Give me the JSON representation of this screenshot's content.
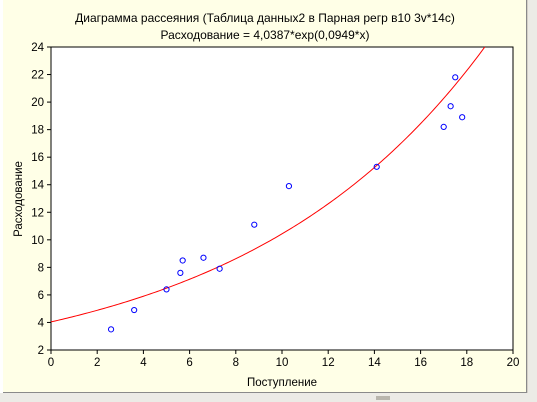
{
  "chart_data": {
    "type": "scatter",
    "title": "Диаграмма рассеяния (Таблица данных2 в Парная регр в10 3v*14c)",
    "subtitle": "Расходование = 4,0387*exp(0,0949*x)",
    "xlabel": "Поступление",
    "ylabel": "Расходование",
    "xlim": [
      0,
      20
    ],
    "ylim": [
      2,
      24
    ],
    "x_ticks": [
      "0",
      "2",
      "4",
      "6",
      "8",
      "10",
      "12",
      "14",
      "16",
      "18",
      "20"
    ],
    "y_ticks": [
      "2",
      "4",
      "6",
      "8",
      "10",
      "12",
      "14",
      "16",
      "18",
      "20",
      "22",
      "24"
    ],
    "grid": false,
    "point_color": "#0000ff",
    "fit_color": "#ff0000",
    "points": [
      {
        "x": 2.6,
        "y": 3.5
      },
      {
        "x": 3.6,
        "y": 4.9
      },
      {
        "x": 5.0,
        "y": 6.4
      },
      {
        "x": 5.6,
        "y": 7.6
      },
      {
        "x": 5.7,
        "y": 8.5
      },
      {
        "x": 6.6,
        "y": 8.7
      },
      {
        "x": 7.3,
        "y": 7.9
      },
      {
        "x": 8.8,
        "y": 11.1
      },
      {
        "x": 10.3,
        "y": 13.9
      },
      {
        "x": 14.1,
        "y": 15.3
      },
      {
        "x": 17.0,
        "y": 18.2
      },
      {
        "x": 17.3,
        "y": 19.7
      },
      {
        "x": 17.5,
        "y": 21.8
      },
      {
        "x": 17.8,
        "y": 18.9
      }
    ],
    "fit": {
      "type": "exponential",
      "a": 4.0387,
      "b": 0.0949
    }
  }
}
